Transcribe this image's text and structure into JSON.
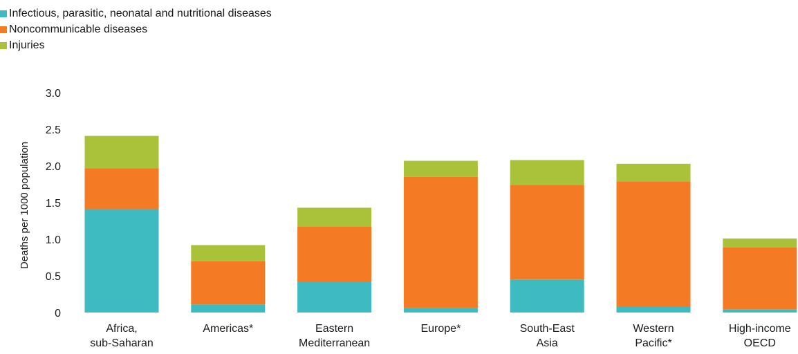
{
  "chart_data": {
    "type": "bar",
    "stacked": true,
    "title": "",
    "xlabel": "",
    "ylabel": "Deaths per 1000 population",
    "ylim": [
      0,
      3.0
    ],
    "yticks": [
      "0",
      "0.5",
      "1.0",
      "1.5",
      "2.0",
      "2.5",
      "3.0"
    ],
    "ytick_values": [
      0,
      0.5,
      1.0,
      1.5,
      2.0,
      2.5,
      3.0
    ],
    "grid": false,
    "legend_position": "top-left",
    "categories": [
      [
        "Africa,",
        "sub-Saharan"
      ],
      [
        "Americas*"
      ],
      [
        "Eastern",
        "Mediterranean"
      ],
      [
        "Europe*"
      ],
      [
        "South-East",
        "Asia"
      ],
      [
        "Western",
        "Pacific*"
      ],
      [
        "High-income",
        "OECD"
      ]
    ],
    "series": [
      {
        "name": "Infectious, parasitic, neonatal and nutritional diseases",
        "color": "#3dbbc1",
        "values": [
          1.41,
          0.11,
          0.42,
          0.06,
          0.45,
          0.08,
          0.04
        ]
      },
      {
        "name": "Noncommunicable diseases",
        "color": "#f47a24",
        "values": [
          0.56,
          0.59,
          0.75,
          1.79,
          1.29,
          1.71,
          0.85
        ]
      },
      {
        "name": "Injuries",
        "color": "#a9c23a",
        "values": [
          0.44,
          0.22,
          0.26,
          0.22,
          0.34,
          0.24,
          0.12
        ]
      }
    ]
  }
}
